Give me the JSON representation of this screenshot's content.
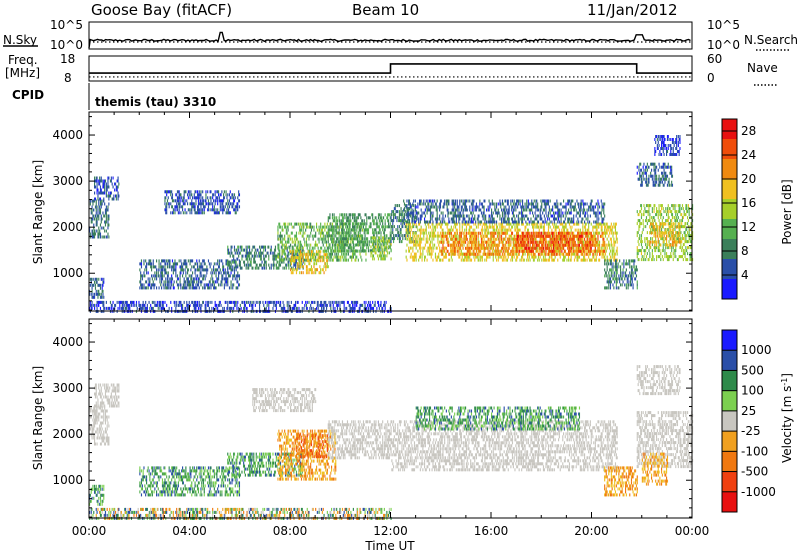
{
  "header": {
    "radar": "Goose Bay (fitACF)",
    "beam": "Beam 10",
    "date": "11/Jan/2012"
  },
  "top_panels": {
    "nsky_label": "N.Sky",
    "nsky_ticks": [
      "10^5",
      "10^0"
    ],
    "nsearch_label": "N.Search",
    "nsearch_ticks": [
      "10^5",
      "10^0"
    ],
    "freq_label": "Freq.",
    "freq_unit": "[MHz]",
    "freq_ticks": [
      "18",
      "8"
    ],
    "nave_label": "Nave",
    "nave_ticks": [
      "60",
      "0"
    ],
    "cpid_label": "CPID",
    "cpid_value": "themis (tau) 3310"
  },
  "colors": {
    "power_scale": [
      "#1a1aff",
      "#2a4fa8",
      "#3a7f5a",
      "#55b050",
      "#a6cf2a",
      "#f0c020",
      "#f08a10",
      "#f04d0a",
      "#e81010"
    ],
    "velocity_scale": [
      "#1a1aff",
      "#2a4fa8",
      "#2e8a4a",
      "#7cd050",
      "#c8c6c0",
      "#f0a020",
      "#f07810",
      "#f04010",
      "#e81010"
    ],
    "ground_scatter": "#c8c6c0"
  },
  "chart_data": [
    {
      "type": "line",
      "name": "N.Sky / N.Search",
      "x_unit": "hours UT",
      "ylim": [
        "10^0",
        "10^5"
      ],
      "x": [
        0,
        0.05,
        2,
        5.2,
        5.3,
        8,
        12,
        15,
        18,
        21.8,
        21.9,
        23,
        24
      ],
      "y_fraction": [
        0.0,
        0.35,
        0.32,
        0.34,
        0.65,
        0.32,
        0.33,
        0.32,
        0.33,
        0.34,
        0.55,
        0.33,
        0.32
      ]
    },
    {
      "type": "line",
      "name": "Freq. / Nave",
      "ylim_freq_mhz": [
        8,
        18
      ],
      "ylim_nave": [
        0,
        60
      ],
      "freq_mhz": [
        {
          "x": 0,
          "y": 11
        },
        {
          "x": 12,
          "y": 11
        },
        {
          "x": 12,
          "y": 15
        },
        {
          "x": 21.8,
          "y": 15
        },
        {
          "x": 21.8,
          "y": 11
        },
        {
          "x": 24,
          "y": 11
        }
      ],
      "nave": 8
    },
    {
      "type": "heatmap",
      "title": "Power",
      "xlabel": "",
      "ylabel": "Slant Range [km]",
      "xlim": [
        0,
        24
      ],
      "ylim": [
        180,
        4500
      ],
      "x_ticks": [
        "00:00",
        "04:00",
        "08:00",
        "12:00",
        "16:00",
        "20:00",
        "00:00"
      ],
      "y_ticks": [
        1000,
        2000,
        3000,
        4000
      ],
      "colorbar": {
        "label": "Power [dB]",
        "ticks": [
          4,
          8,
          12,
          16,
          20,
          24,
          28
        ],
        "range": [
          0,
          30
        ]
      },
      "regions": [
        {
          "t": [
            0.0,
            0.8
          ],
          "r": [
            1800,
            2600
          ],
          "v": 7
        },
        {
          "t": [
            0.2,
            1.2
          ],
          "r": [
            2600,
            3100
          ],
          "v": 5
        },
        {
          "t": [
            0.0,
            0.6
          ],
          "r": [
            500,
            900
          ],
          "v": 6
        },
        {
          "t": [
            0.0,
            12.0
          ],
          "r": [
            200,
            400
          ],
          "v": 4
        },
        {
          "t": [
            2.0,
            6.0
          ],
          "r": [
            700,
            1300
          ],
          "v": 6
        },
        {
          "t": [
            5.5,
            8.5
          ],
          "r": [
            1100,
            1600
          ],
          "v": 8
        },
        {
          "t": [
            3.0,
            6.0
          ],
          "r": [
            2300,
            2800
          ],
          "v": 5
        },
        {
          "t": [
            7.5,
            11.0
          ],
          "r": [
            1300,
            2100
          ],
          "v": 12
        },
        {
          "t": [
            8.0,
            9.5
          ],
          "r": [
            1000,
            1500
          ],
          "v": 18
        },
        {
          "t": [
            9.5,
            12.0
          ],
          "r": [
            1500,
            2300
          ],
          "v": 10
        },
        {
          "t": [
            11.2,
            12.0
          ],
          "r": [
            1300,
            1800
          ],
          "v": 14
        },
        {
          "t": [
            12.0,
            13.0
          ],
          "r": [
            1700,
            2500
          ],
          "v": 8
        },
        {
          "t": [
            12.6,
            21.0
          ],
          "r": [
            1300,
            2100
          ],
          "v": 17
        },
        {
          "t": [
            14.0,
            20.5
          ],
          "r": [
            1400,
            1900
          ],
          "v": 22
        },
        {
          "t": [
            17.0,
            20.0
          ],
          "r": [
            1500,
            1900
          ],
          "v": 25
        },
        {
          "t": [
            12.5,
            20.5
          ],
          "r": [
            2100,
            2600
          ],
          "v": 6
        },
        {
          "t": [
            20.5,
            21.8
          ],
          "r": [
            700,
            1300
          ],
          "v": 8
        },
        {
          "t": [
            21.8,
            24.0
          ],
          "r": [
            1300,
            2500
          ],
          "v": 14
        },
        {
          "t": [
            22.3,
            23.5
          ],
          "r": [
            1600,
            2100
          ],
          "v": 20
        },
        {
          "t": [
            21.8,
            23.2
          ],
          "r": [
            2900,
            3400
          ],
          "v": 6
        },
        {
          "t": [
            22.5,
            23.5
          ],
          "r": [
            3600,
            4000
          ],
          "v": 4
        }
      ]
    },
    {
      "type": "heatmap",
      "title": "Velocity",
      "xlabel": "Time UT",
      "ylabel": "Slant Range [km]",
      "xlim": [
        0,
        24
      ],
      "ylim": [
        180,
        4500
      ],
      "x_ticks": [
        "00:00",
        "04:00",
        "08:00",
        "12:00",
        "16:00",
        "20:00",
        "00:00"
      ],
      "y_ticks": [
        1000,
        2000,
        3000,
        4000
      ],
      "colorbar": {
        "label": "Velocity [m s^-1]",
        "ticks": [
          "1000",
          "500",
          "100",
          "25",
          "-25",
          "-100",
          "-500",
          "-1000"
        ]
      },
      "regions": [
        {
          "t": [
            0.0,
            0.8
          ],
          "r": [
            1800,
            2600
          ],
          "v": "gs"
        },
        {
          "t": [
            0.2,
            1.2
          ],
          "r": [
            2600,
            3100
          ],
          "v": "gs"
        },
        {
          "t": [
            0.0,
            0.6
          ],
          "r": [
            500,
            900
          ],
          "v": "pos"
        },
        {
          "t": [
            0.0,
            12.0
          ],
          "r": [
            200,
            400
          ],
          "v": "mixed"
        },
        {
          "t": [
            2.0,
            6.0
          ],
          "r": [
            700,
            1300
          ],
          "v": "pos"
        },
        {
          "t": [
            5.5,
            8.5
          ],
          "r": [
            1100,
            1600
          ],
          "v": "pos"
        },
        {
          "t": [
            6.5,
            9.0
          ],
          "r": [
            2500,
            3000
          ],
          "v": "gs"
        },
        {
          "t": [
            7.5,
            9.8
          ],
          "r": [
            1000,
            2100
          ],
          "v": "neg"
        },
        {
          "t": [
            8.2,
            9.5
          ],
          "r": [
            1500,
            2000
          ],
          "v": "strongneg"
        },
        {
          "t": [
            9.5,
            12.0
          ],
          "r": [
            1500,
            2300
          ],
          "v": "gs"
        },
        {
          "t": [
            12.0,
            21.0
          ],
          "r": [
            1200,
            2300
          ],
          "v": "gs"
        },
        {
          "t": [
            13.0,
            19.5
          ],
          "r": [
            2100,
            2600
          ],
          "v": "pos"
        },
        {
          "t": [
            20.5,
            21.8
          ],
          "r": [
            700,
            1300
          ],
          "v": "neg"
        },
        {
          "t": [
            21.8,
            24.0
          ],
          "r": [
            1300,
            2500
          ],
          "v": "gs"
        },
        {
          "t": [
            22.0,
            23.0
          ],
          "r": [
            900,
            1600
          ],
          "v": "neg"
        },
        {
          "t": [
            21.8,
            23.5
          ],
          "r": [
            2900,
            3500
          ],
          "v": "gs"
        }
      ]
    }
  ]
}
